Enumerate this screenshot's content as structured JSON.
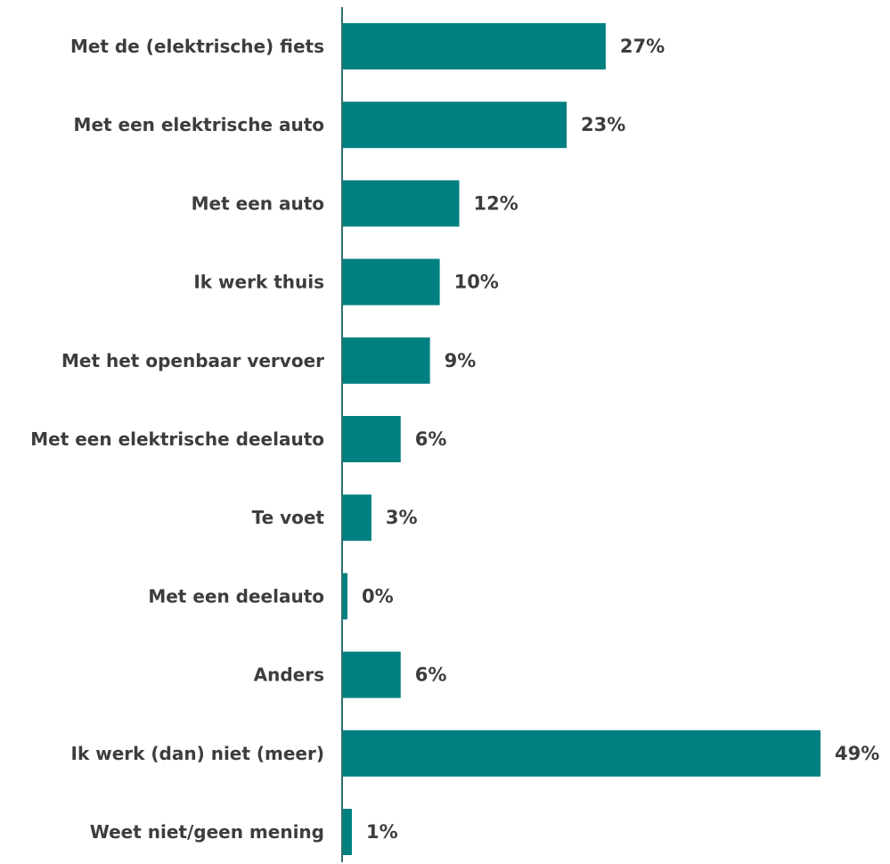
{
  "chart_data": {
    "type": "bar",
    "orientation": "horizontal",
    "categories": [
      "Met de (elektrische) fiets",
      "Met een elektrische auto",
      "Met een auto",
      "Ik werk thuis",
      "Met het openbaar vervoer",
      "Met een elektrische deelauto",
      "Te voet",
      "Met een deelauto",
      "Anders",
      "Ik werk (dan) niet (meer)",
      "Weet niet/geen mening"
    ],
    "values": [
      27,
      23,
      12,
      10,
      9,
      6,
      3,
      0,
      6,
      49,
      1
    ],
    "value_labels": [
      "27%",
      "23%",
      "12%",
      "10%",
      "9%",
      "6%",
      "3%",
      "0%",
      "6%",
      "49%",
      "1%"
    ],
    "bar_color": "#008080",
    "axis_color": "#2f6f6f",
    "text_color": "#3d3d3d",
    "grid": false,
    "legend": "none"
  }
}
